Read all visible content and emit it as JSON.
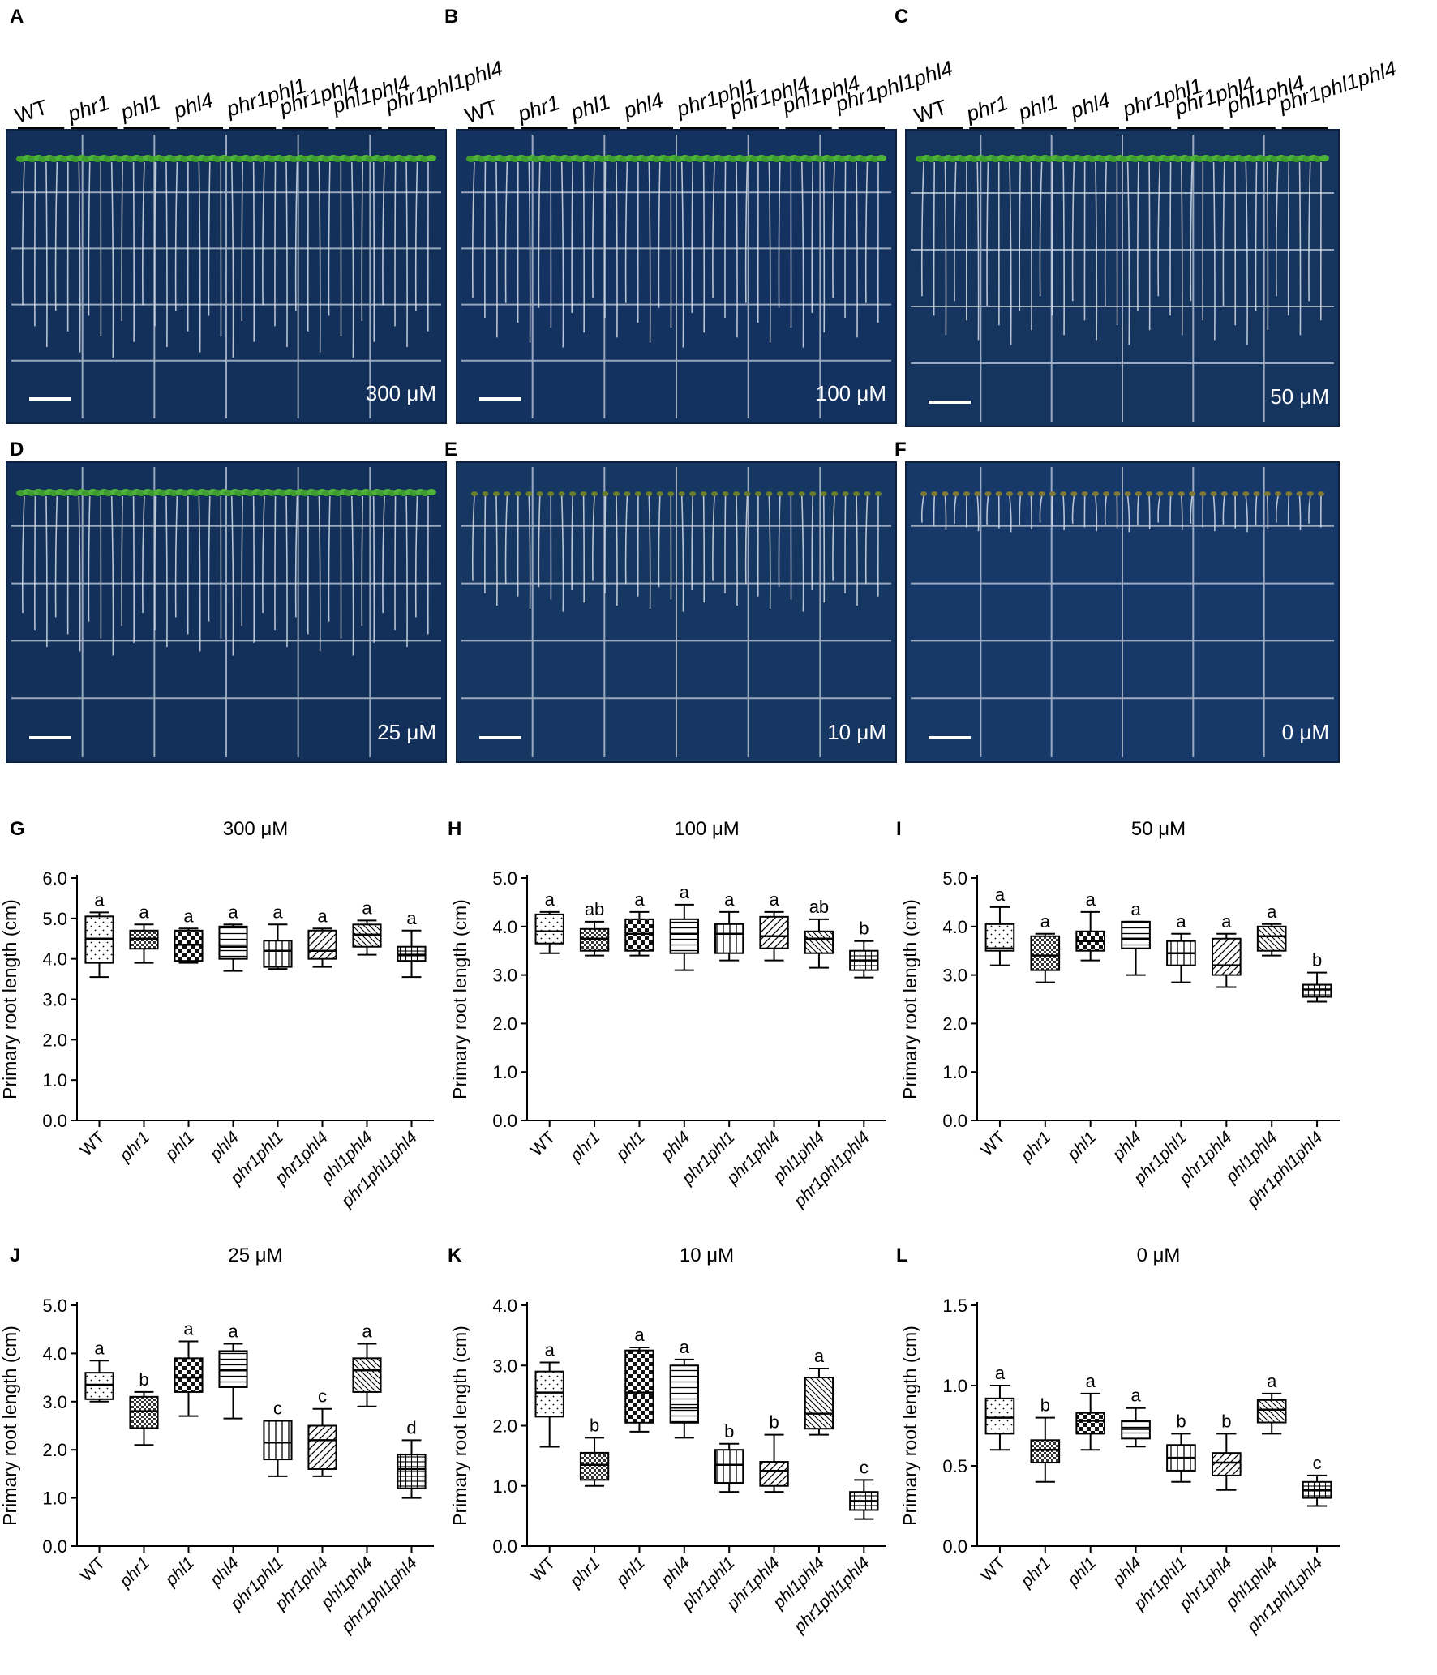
{
  "figure": {
    "genotypes": [
      "WT",
      "phr1",
      "phl1",
      "phl4",
      "phr1phl1",
      "phr1phl4",
      "phl1phl4",
      "phr1phl1phl4"
    ],
    "photo_panels": [
      {
        "letter": "A",
        "concentration": "300 μM",
        "tint": "#12305a"
      },
      {
        "letter": "B",
        "concentration": "100 μM",
        "tint": "#133260"
      },
      {
        "letter": "C",
        "concentration": "50 μM",
        "tint": "#15345e"
      },
      {
        "letter": "D",
        "concentration": "25 μM",
        "tint": "#12305a"
      },
      {
        "letter": "E",
        "concentration": "10 μM",
        "tint": "#153762"
      },
      {
        "letter": "F",
        "concentration": "0 μM",
        "tint": "#17396a"
      }
    ],
    "colors": {
      "plate": "#14345f",
      "seedling": "#3f9d2f",
      "root": "#d7dde6",
      "grid": "#c7d0dd"
    }
  },
  "chart_data": [
    {
      "letter": "G",
      "type": "box",
      "title": "300 μM",
      "ylabel": "Primary root length (cm)",
      "ylim": [
        0,
        6
      ],
      "yticks": [
        "0.0",
        "1.0",
        "2.0",
        "3.0",
        "4.0",
        "5.0",
        "6.0"
      ],
      "categories": [
        "WT",
        "phr1",
        "phl1",
        "phl4",
        "phr1phl1",
        "phr1phl4",
        "phl1phl4",
        "phr1phl1phl4"
      ],
      "min": [
        3.55,
        3.9,
        3.9,
        3.7,
        3.75,
        3.8,
        4.1,
        3.55
      ],
      "q1": [
        3.9,
        4.25,
        3.95,
        4.0,
        3.8,
        4.0,
        4.3,
        3.95
      ],
      "median": [
        4.5,
        4.5,
        4.35,
        4.3,
        4.2,
        4.2,
        4.6,
        4.1
      ],
      "q3": [
        5.05,
        4.7,
        4.7,
        4.8,
        4.45,
        4.7,
        4.85,
        4.3
      ],
      "max": [
        5.15,
        4.85,
        4.75,
        4.85,
        4.85,
        4.75,
        4.95,
        4.7
      ],
      "letters": [
        "a",
        "a",
        "a",
        "a",
        "a",
        "a",
        "a",
        "a"
      ]
    },
    {
      "letter": "H",
      "type": "box",
      "title": "100 μM",
      "ylabel": "Primary root length (cm)",
      "ylim": [
        0,
        5
      ],
      "yticks": [
        "0.0",
        "1.0",
        "2.0",
        "3.0",
        "4.0",
        "5.0"
      ],
      "categories": [
        "WT",
        "phr1",
        "phl1",
        "phl4",
        "phr1phl1",
        "phr1phl4",
        "phl1phl4",
        "phr1phl1phl4"
      ],
      "min": [
        3.45,
        3.4,
        3.4,
        3.1,
        3.3,
        3.3,
        3.15,
        2.95
      ],
      "q1": [
        3.65,
        3.5,
        3.5,
        3.45,
        3.45,
        3.55,
        3.45,
        3.1
      ],
      "median": [
        3.9,
        3.75,
        3.85,
        3.85,
        3.85,
        3.8,
        3.75,
        3.3
      ],
      "q3": [
        4.25,
        3.95,
        4.15,
        4.15,
        4.05,
        4.2,
        3.9,
        3.5
      ],
      "max": [
        4.3,
        4.1,
        4.3,
        4.45,
        4.3,
        4.3,
        4.15,
        3.7
      ],
      "letters": [
        "a",
        "ab",
        "a",
        "a",
        "a",
        "a",
        "ab",
        "b"
      ]
    },
    {
      "letter": "I",
      "type": "box",
      "title": "50 μM",
      "ylabel": "Primary root length (cm)",
      "ylim": [
        0,
        5
      ],
      "yticks": [
        "0.0",
        "1.0",
        "2.0",
        "3.0",
        "4.0",
        "5.0"
      ],
      "categories": [
        "WT",
        "phr1",
        "phl1",
        "phl4",
        "phr1phl1",
        "phr1phl4",
        "phl1phl4",
        "phr1phl1phl4"
      ],
      "min": [
        3.2,
        2.85,
        3.3,
        3.0,
        2.85,
        2.75,
        3.4,
        2.45
      ],
      "q1": [
        3.5,
        3.1,
        3.5,
        3.55,
        3.2,
        3.0,
        3.5,
        2.55
      ],
      "median": [
        3.55,
        3.4,
        3.7,
        3.75,
        3.45,
        3.2,
        3.8,
        2.7
      ],
      "q3": [
        4.05,
        3.8,
        3.9,
        4.1,
        3.7,
        3.75,
        4.0,
        2.8
      ],
      "max": [
        4.4,
        3.85,
        4.3,
        4.1,
        3.85,
        3.85,
        4.05,
        3.05
      ],
      "letters": [
        "a",
        "a",
        "a",
        "a",
        "a",
        "a",
        "a",
        "b"
      ]
    },
    {
      "letter": "J",
      "type": "box",
      "title": "25 μM",
      "ylabel": "Primary root length (cm)",
      "ylim": [
        0,
        5
      ],
      "yticks": [
        "0.0",
        "1.0",
        "2.0",
        "3.0",
        "4.0",
        "5.0"
      ],
      "categories": [
        "WT",
        "phr1",
        "phl1",
        "phl4",
        "phr1phl1",
        "phr1phl4",
        "phl1phl4",
        "phr1phl1phl4"
      ],
      "min": [
        3.0,
        2.1,
        2.7,
        2.65,
        1.45,
        1.45,
        2.9,
        1.0
      ],
      "q1": [
        3.05,
        2.45,
        3.2,
        3.3,
        1.8,
        1.6,
        3.2,
        1.2
      ],
      "median": [
        3.35,
        2.8,
        3.5,
        3.65,
        2.15,
        2.2,
        3.65,
        1.6
      ],
      "q3": [
        3.6,
        3.1,
        3.9,
        4.05,
        2.6,
        2.5,
        3.9,
        1.9
      ],
      "max": [
        3.85,
        3.2,
        4.25,
        4.2,
        2.6,
        2.85,
        4.2,
        2.2
      ],
      "letters": [
        "a",
        "b",
        "a",
        "a",
        "c",
        "c",
        "a",
        "d"
      ]
    },
    {
      "letter": "K",
      "type": "box",
      "title": "10 μM",
      "ylabel": "Primary root length (cm)",
      "ylim": [
        0,
        4
      ],
      "yticks": [
        "0.0",
        "1.0",
        "2.0",
        "3.0",
        "4.0"
      ],
      "categories": [
        "WT",
        "phr1",
        "phl1",
        "phl4",
        "phr1phl1",
        "phr1phl4",
        "phl1phl4",
        "phr1phl1phl4"
      ],
      "min": [
        1.65,
        1.0,
        1.9,
        1.8,
        0.9,
        0.9,
        1.85,
        0.45
      ],
      "q1": [
        2.15,
        1.1,
        2.05,
        2.05,
        1.05,
        1.0,
        1.95,
        0.6
      ],
      "median": [
        2.55,
        1.35,
        2.55,
        2.3,
        1.35,
        1.25,
        2.2,
        0.75
      ],
      "q3": [
        2.9,
        1.55,
        3.25,
        3.0,
        1.6,
        1.4,
        2.8,
        0.9
      ],
      "max": [
        3.05,
        1.8,
        3.3,
        3.1,
        1.7,
        1.85,
        2.95,
        1.1
      ],
      "letters": [
        "a",
        "b",
        "a",
        "a",
        "b",
        "b",
        "a",
        "c"
      ]
    },
    {
      "letter": "L",
      "type": "box",
      "title": "0 μM",
      "ylabel": "Primary root length (cm)",
      "ylim": [
        0,
        1.5
      ],
      "yticks": [
        "0.0",
        "0.5",
        "1.0",
        "1.5"
      ],
      "categories": [
        "WT",
        "phr1",
        "phl1",
        "phl4",
        "phr1phl1",
        "phr1phl4",
        "phl1phl4",
        "phr1phl1phl4"
      ],
      "min": [
        0.6,
        0.4,
        0.6,
        0.62,
        0.4,
        0.35,
        0.7,
        0.25
      ],
      "q1": [
        0.7,
        0.52,
        0.7,
        0.67,
        0.47,
        0.44,
        0.77,
        0.3
      ],
      "median": [
        0.8,
        0.6,
        0.78,
        0.73,
        0.55,
        0.52,
        0.85,
        0.35
      ],
      "q3": [
        0.92,
        0.66,
        0.83,
        0.78,
        0.63,
        0.58,
        0.91,
        0.4
      ],
      "max": [
        1.0,
        0.8,
        0.95,
        0.86,
        0.7,
        0.7,
        0.95,
        0.44
      ],
      "letters": [
        "a",
        "b",
        "a",
        "a",
        "b",
        "b",
        "a",
        "c"
      ]
    }
  ]
}
